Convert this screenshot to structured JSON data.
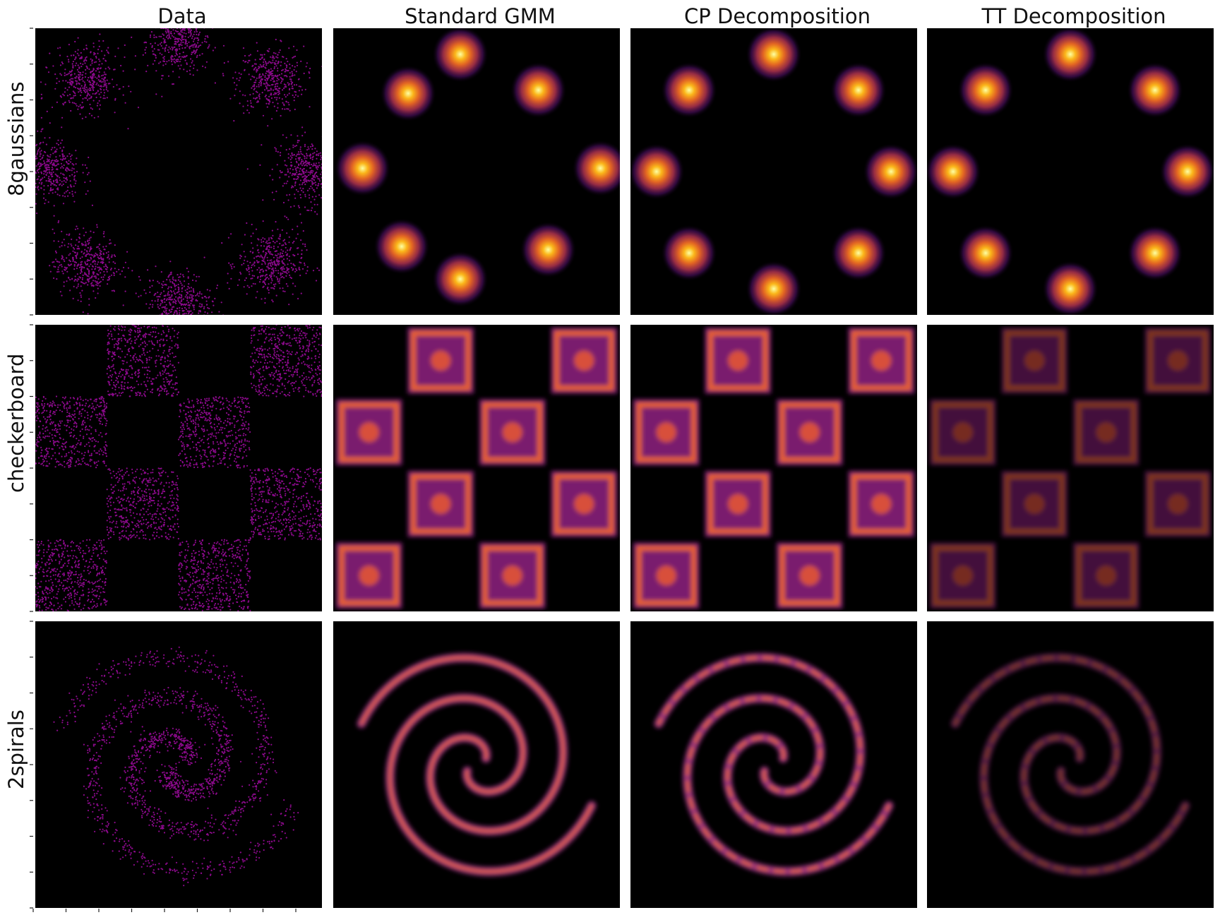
{
  "figure": {
    "column_titles": [
      "Data",
      "Standard GMM",
      "CP Decomposition",
      "TT Decomposition"
    ],
    "row_labels": [
      "8gaussians",
      "checkerboard",
      "2spirals"
    ]
  },
  "colors": {
    "scatter": "#8b0a8b",
    "background": "#000000",
    "colormap": "inferno"
  },
  "chart_data": [
    {
      "type": "scatter",
      "title": "Data",
      "row": "8gaussians",
      "centers": [
        [
          0,
          4
        ],
        [
          2.83,
          2.83
        ],
        [
          4,
          0
        ],
        [
          2.83,
          -2.83
        ],
        [
          0,
          -4
        ],
        [
          -2.83,
          -2.83
        ],
        [
          -4,
          0
        ],
        [
          -2.83,
          2.83
        ]
      ],
      "spread": 0.5,
      "xlim": [
        -4,
        4
      ],
      "ylim": [
        -4,
        4
      ],
      "grid": false
    },
    {
      "type": "heatmap",
      "title": "Standard GMM",
      "row": "8gaussians",
      "centers": [
        [
          -0.5,
          3.6
        ],
        [
          1.9,
          2.5
        ],
        [
          3.8,
          0.1
        ],
        [
          2.2,
          -2.4
        ],
        [
          -0.5,
          -3.3
        ],
        [
          -2.3,
          -2.3
        ],
        [
          -3.5,
          0.1
        ],
        [
          -2.1,
          2.4
        ]
      ]
    },
    {
      "type": "heatmap",
      "title": "CP Decomposition",
      "row": "8gaussians",
      "centers": [
        [
          0,
          3.6
        ],
        [
          2.6,
          2.5
        ],
        [
          3.6,
          0
        ],
        [
          2.6,
          -2.5
        ],
        [
          0,
          -3.6
        ],
        [
          -2.6,
          -2.5
        ],
        [
          -3.6,
          0
        ],
        [
          -2.6,
          2.5
        ]
      ]
    },
    {
      "type": "heatmap",
      "title": "TT Decomposition",
      "row": "8gaussians",
      "centers": [
        [
          0,
          3.6
        ],
        [
          2.6,
          2.5
        ],
        [
          3.6,
          0
        ],
        [
          2.6,
          -2.5
        ],
        [
          0,
          -3.6
        ],
        [
          -2.6,
          -2.5
        ],
        [
          -3.6,
          0
        ],
        [
          -2.6,
          2.5
        ]
      ]
    },
    {
      "type": "scatter",
      "title": "Data",
      "row": "checkerboard",
      "filled_cells": [
        [
          1,
          0
        ],
        [
          3,
          0
        ],
        [
          0,
          1
        ],
        [
          2,
          1
        ],
        [
          1,
          2
        ],
        [
          3,
          2
        ],
        [
          0,
          3
        ],
        [
          2,
          3
        ]
      ],
      "grid_size": 4,
      "xlim": [
        -4,
        4
      ],
      "ylim": [
        -4,
        4
      ],
      "grid": false
    },
    {
      "type": "heatmap",
      "title": "Standard GMM",
      "row": "checkerboard",
      "filled_cells": [
        [
          1,
          0
        ],
        [
          3,
          0
        ],
        [
          0,
          1
        ],
        [
          2,
          1
        ],
        [
          1,
          2
        ],
        [
          3,
          2
        ],
        [
          0,
          3
        ],
        [
          2,
          3
        ]
      ]
    },
    {
      "type": "heatmap",
      "title": "CP Decomposition",
      "row": "checkerboard",
      "filled_cells": [
        [
          1,
          0
        ],
        [
          3,
          0
        ],
        [
          0,
          1
        ],
        [
          2,
          1
        ],
        [
          1,
          2
        ],
        [
          3,
          2
        ],
        [
          0,
          3
        ],
        [
          2,
          3
        ]
      ]
    },
    {
      "type": "heatmap",
      "title": "TT Decomposition",
      "row": "checkerboard",
      "filled_cells": [
        [
          1,
          0
        ],
        [
          3,
          0
        ],
        [
          0,
          1
        ],
        [
          2,
          1
        ],
        [
          1,
          2
        ],
        [
          3,
          2
        ],
        [
          0,
          3
        ],
        [
          2,
          3
        ]
      ]
    },
    {
      "type": "scatter",
      "title": "Data",
      "row": "2spirals",
      "arms": 2,
      "turns": 1.35,
      "xlim": [
        -4,
        4
      ],
      "ylim": [
        -4,
        4
      ],
      "grid": false
    },
    {
      "type": "heatmap",
      "title": "Standard GMM",
      "row": "2spirals",
      "arms": 2
    },
    {
      "type": "heatmap",
      "title": "CP Decomposition",
      "row": "2spirals",
      "arms": 2
    },
    {
      "type": "heatmap",
      "title": "TT Decomposition",
      "row": "2spirals",
      "arms": 2
    }
  ]
}
